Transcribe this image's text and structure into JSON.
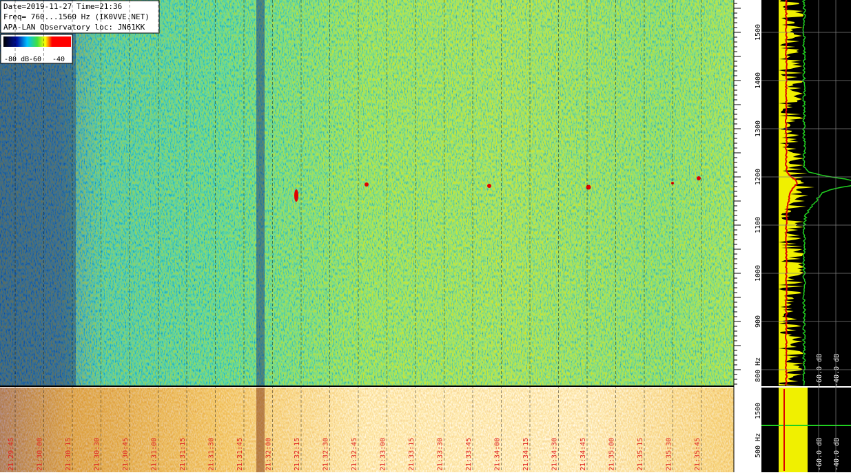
{
  "header": {
    "lines": [
      "Date=2019-11-27 Time=21:36",
      "Freq= 760...1560 Hz (IK0VVE.NET)",
      "APA-LAN Observatory loc: JN61KK"
    ]
  },
  "colorbar": {
    "labels": [
      "-80 dB",
      "-60",
      "-40"
    ]
  },
  "freq_axis": {
    "labels": [
      "1500",
      "1400",
      "1300",
      "1200",
      "1100",
      "1000",
      "900",
      "800 Hz"
    ]
  },
  "strip_freq_axis": {
    "labels": [
      "1500",
      "500 Hz"
    ]
  },
  "time_axis": {
    "labels": [
      "21:29:45",
      "21:30:00",
      "21:30:15",
      "21:30:30",
      "21:30:45",
      "21:31:00",
      "21:31:15",
      "21:31:30",
      "21:31:45",
      "21:32:00",
      "21:32:15",
      "21:32:30",
      "21:32:45",
      "21:33:00",
      "21:33:15",
      "21:33:30",
      "21:33:45",
      "21:34:00",
      "21:34:15",
      "21:34:30",
      "21:34:45",
      "21:35:00",
      "21:35:15",
      "21:35:30",
      "21:35:45"
    ]
  },
  "spectrum_panel": {
    "labels": [
      "-60.0 dB",
      "-40.0 dB"
    ]
  },
  "strip_level_panel": {
    "labels": [
      "-60.0 dB",
      "-40.0 dB"
    ]
  }
}
